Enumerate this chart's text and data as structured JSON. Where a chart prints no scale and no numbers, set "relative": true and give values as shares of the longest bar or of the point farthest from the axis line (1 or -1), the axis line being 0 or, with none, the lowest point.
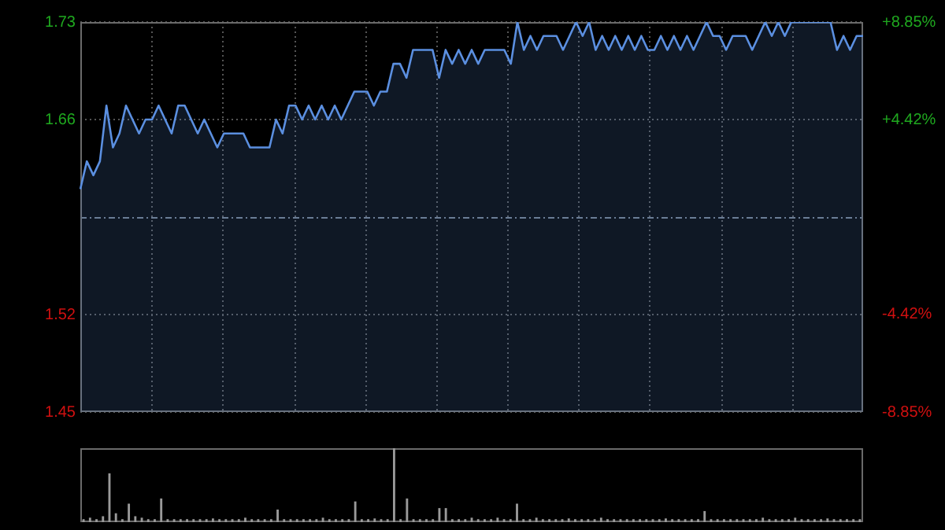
{
  "chart_data": [
    {
      "type": "area",
      "categories": [
        null,
        null,
        null,
        null,
        null,
        null,
        null,
        null,
        null,
        null,
        null,
        null,
        null,
        null,
        null,
        null,
        null,
        null,
        null,
        null,
        null,
        null,
        null,
        null,
        null,
        null,
        null,
        null,
        null,
        null,
        null,
        null,
        null,
        null,
        null,
        null,
        null,
        null,
        null,
        null,
        null,
        null,
        null,
        null,
        null,
        null,
        null,
        null,
        null,
        null,
        null,
        null,
        null,
        null,
        null,
        null,
        null,
        null,
        null,
        null,
        null,
        null,
        null,
        null,
        null,
        null,
        null,
        null,
        null,
        null,
        null,
        null,
        null,
        null,
        null,
        null,
        null,
        null,
        null,
        null,
        null,
        null,
        null,
        null,
        null,
        null,
        null,
        null,
        null,
        null,
        null,
        null,
        null,
        null,
        null,
        null,
        null,
        null,
        null,
        null,
        null,
        null,
        null,
        null,
        null,
        null,
        null,
        null,
        null,
        null,
        null,
        null,
        null,
        null,
        null,
        null,
        null,
        null,
        null,
        null,
        null
      ],
      "values": [
        1.61,
        1.63,
        1.62,
        1.63,
        1.67,
        1.64,
        1.65,
        1.67,
        1.66,
        1.65,
        1.66,
        1.66,
        1.67,
        1.66,
        1.65,
        1.67,
        1.67,
        1.66,
        1.65,
        1.66,
        1.65,
        1.64,
        1.65,
        1.65,
        1.65,
        1.65,
        1.64,
        1.64,
        1.64,
        1.64,
        1.66,
        1.65,
        1.67,
        1.67,
        1.66,
        1.67,
        1.66,
        1.67,
        1.66,
        1.67,
        1.66,
        1.67,
        1.68,
        1.68,
        1.68,
        1.67,
        1.68,
        1.68,
        1.7,
        1.7,
        1.69,
        1.71,
        1.71,
        1.71,
        1.71,
        1.69,
        1.71,
        1.7,
        1.71,
        1.7,
        1.71,
        1.7,
        1.71,
        1.71,
        1.71,
        1.71,
        1.7,
        1.73,
        1.71,
        1.72,
        1.71,
        1.72,
        1.72,
        1.72,
        1.71,
        1.72,
        1.73,
        1.72,
        1.73,
        1.71,
        1.72,
        1.71,
        1.72,
        1.71,
        1.72,
        1.71,
        1.72,
        1.71,
        1.71,
        1.72,
        1.71,
        1.72,
        1.71,
        1.72,
        1.71,
        1.72,
        1.73,
        1.72,
        1.72,
        1.71,
        1.72,
        1.72,
        1.72,
        1.71,
        1.72,
        1.73,
        1.72,
        1.73,
        1.72,
        1.73,
        1.73,
        1.73,
        1.73,
        1.73,
        1.73,
        1.73,
        1.71,
        1.72,
        1.71,
        1.72,
        1.72
      ],
      "color": "#5b8fe0",
      "ylim": [
        1.45,
        1.73
      ],
      "yticks": [
        1.45,
        1.52,
        1.66,
        1.73
      ],
      "y2lim": [
        -8.85,
        8.85
      ],
      "y2ticks": [
        {
          "value": -8.85,
          "label": "-8.85%"
        },
        {
          "value": -4.42,
          "label": "-4.42%"
        },
        {
          "value": 4.42,
          "label": "+4.42%"
        },
        {
          "value": 8.85,
          "label": "+8.85%"
        }
      ],
      "grid": true,
      "ref_lines": [
        {
          "axis": "y",
          "value": 1.59,
          "color": "#6d7a88",
          "line_style": "dashed"
        }
      ]
    },
    {
      "type": "bar",
      "relative": true,
      "categories": [
        null,
        null,
        null,
        null,
        null,
        null,
        null,
        null,
        null,
        null,
        null,
        null,
        null,
        null,
        null,
        null,
        null,
        null,
        null,
        null,
        null,
        null,
        null,
        null,
        null,
        null,
        null,
        null,
        null,
        null,
        null,
        null,
        null,
        null,
        null,
        null,
        null,
        null,
        null,
        null,
        null,
        null,
        null,
        null,
        null,
        null,
        null,
        null,
        null,
        null,
        null,
        null,
        null,
        null,
        null,
        null,
        null,
        null,
        null,
        null,
        null,
        null,
        null,
        null,
        null,
        null,
        null,
        null,
        null,
        null,
        null,
        null,
        null,
        null,
        null,
        null,
        null,
        null,
        null,
        null,
        null,
        null,
        null,
        null,
        null,
        null,
        null,
        null,
        null,
        null,
        null,
        null,
        null,
        null,
        null,
        null,
        null,
        null,
        null,
        null,
        null,
        null,
        null,
        null,
        null,
        null,
        null,
        null,
        null,
        null,
        null,
        null,
        null,
        null,
        null,
        null,
        null,
        null,
        null,
        null,
        null
      ],
      "values": [
        0.04,
        0.06,
        0.04,
        0.08,
        0.66,
        0.12,
        0.04,
        0.25,
        0.08,
        0.06,
        0.04,
        0.04,
        0.32,
        0.04,
        0.04,
        0.04,
        0.04,
        0.04,
        0.04,
        0.04,
        0.05,
        0.04,
        0.04,
        0.04,
        0.04,
        0.06,
        0.04,
        0.04,
        0.04,
        0.04,
        0.17,
        0.04,
        0.04,
        0.04,
        0.04,
        0.04,
        0.04,
        0.06,
        0.04,
        0.04,
        0.04,
        0.04,
        0.28,
        0.04,
        0.04,
        0.05,
        0.04,
        0.04,
        1,
        0.04,
        0.32,
        0.04,
        0.04,
        0.04,
        0.04,
        0.19,
        0.19,
        0.04,
        0.04,
        0.04,
        0.06,
        0.04,
        0.04,
        0.04,
        0.06,
        0.04,
        0.04,
        0.25,
        0.04,
        0.04,
        0.06,
        0.04,
        0.04,
        0.04,
        0.04,
        0.05,
        0.04,
        0.04,
        0.04,
        0.04,
        0.06,
        0.04,
        0.04,
        0.04,
        0.04,
        0.04,
        0.04,
        0.04,
        0.04,
        0.04,
        0.05,
        0.04,
        0.04,
        0.04,
        0.04,
        0.04,
        0.15,
        0.04,
        0.04,
        0.04,
        0.04,
        0.04,
        0.04,
        0.04,
        0.04,
        0.06,
        0.04,
        0.04,
        0.04,
        0.04,
        0.06,
        0.04,
        0.04,
        0.04,
        0.04,
        0.05,
        0.04,
        0.04,
        0.04,
        0.04,
        0.04
      ],
      "color": "#9a9a9a"
    }
  ]
}
